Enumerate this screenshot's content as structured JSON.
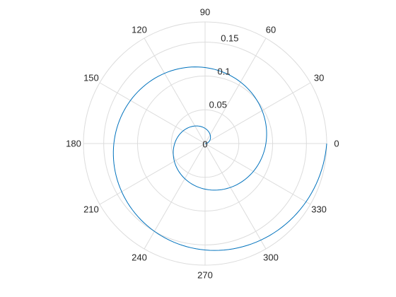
{
  "chart_data": {
    "type": "line",
    "coordinate_system": "polar",
    "title": "",
    "theta_ticks_deg": [
      0,
      30,
      60,
      90,
      120,
      150,
      180,
      210,
      240,
      270,
      300,
      330
    ],
    "theta_tick_labels": [
      "0",
      "30",
      "60",
      "90",
      "120",
      "150",
      "180",
      "210",
      "240",
      "270",
      "300",
      "330"
    ],
    "r_ticks": [
      0,
      0.05,
      0.1,
      0.15
    ],
    "r_tick_labels": [
      "0",
      "0.05",
      "0.1",
      "0.15"
    ],
    "rlim": [
      0,
      0.18
    ],
    "r_tick_label_angle_deg": 80,
    "grid": true,
    "colors": {
      "series": "#0072bd",
      "grid": "#dcdcdc",
      "text": "#262626"
    },
    "series": [
      {
        "theta_deg": [
          0,
          20,
          40,
          60,
          80,
          100,
          120,
          140,
          160,
          180,
          200,
          220,
          240,
          260,
          280,
          300,
          320,
          340,
          360,
          380,
          400,
          420,
          440,
          460,
          480,
          500,
          520,
          540,
          560,
          580,
          600,
          620,
          640,
          660,
          680,
          700,
          720
        ],
        "r": [
          0,
          0.005,
          0.01,
          0.015,
          0.02,
          0.025,
          0.03,
          0.035,
          0.04,
          0.045,
          0.05,
          0.055,
          0.06,
          0.065,
          0.07,
          0.075,
          0.08,
          0.085,
          0.09,
          0.095,
          0.1,
          0.105,
          0.11,
          0.115,
          0.12,
          0.125,
          0.13,
          0.135,
          0.14,
          0.145,
          0.15,
          0.155,
          0.16,
          0.165,
          0.17,
          0.175,
          0.18
        ]
      }
    ]
  }
}
